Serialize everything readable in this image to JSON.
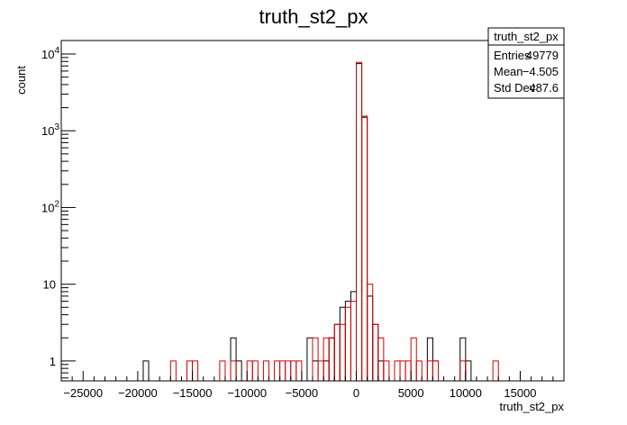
{
  "chart_data": {
    "type": "histogram",
    "title": "truth_st2_px",
    "xlabel": "truth_st2_px",
    "ylabel": "count",
    "xlim": [
      -27000,
      19000
    ],
    "ylim": [
      0.55,
      15000
    ],
    "yscale": "log",
    "grid": false,
    "bin_width": 500,
    "x_ticks": [
      -25000,
      -20000,
      -15000,
      -10000,
      -5000,
      0,
      5000,
      10000,
      15000
    ],
    "x_tick_labels": [
      "−25000",
      "−20000",
      "−15000",
      "−10000",
      "−5000",
      "0",
      "5000",
      "10000",
      "15000"
    ],
    "y_ticks": [
      {
        "value": 1,
        "base": "1",
        "exp": ""
      },
      {
        "value": 10,
        "base": "10",
        "exp": ""
      },
      {
        "value": 100,
        "base": "10",
        "exp": "2"
      },
      {
        "value": 1000,
        "base": "10",
        "exp": "3"
      },
      {
        "value": 10000,
        "base": "10",
        "exp": "4"
      }
    ],
    "series": [
      {
        "color": "#000000",
        "bins": [
          [
            -19500,
            1
          ],
          [
            -11500,
            2
          ],
          [
            -11000,
            1
          ],
          [
            -4500,
            2
          ],
          [
            -4000,
            1
          ],
          [
            -3000,
            1
          ],
          [
            -2500,
            2
          ],
          [
            -2000,
            3
          ],
          [
            -1500,
            5
          ],
          [
            -1000,
            6
          ],
          [
            -500,
            8
          ],
          [
            0,
            7500
          ],
          [
            500,
            1500
          ],
          [
            1000,
            7
          ],
          [
            1500,
            3
          ],
          [
            2000,
            1
          ],
          [
            6500,
            2
          ],
          [
            7000,
            1
          ],
          [
            9500,
            2
          ],
          [
            10000,
            1
          ]
        ]
      },
      {
        "color": "#d40000",
        "bins": [
          [
            -17000,
            1
          ],
          [
            -15500,
            1
          ],
          [
            -15000,
            1
          ],
          [
            -12500,
            1
          ],
          [
            -11500,
            1
          ],
          [
            -10000,
            1
          ],
          [
            -9500,
            1
          ],
          [
            -8500,
            1
          ],
          [
            -7500,
            1
          ],
          [
            -7000,
            1
          ],
          [
            -6500,
            1
          ],
          [
            -6000,
            1
          ],
          [
            -5500,
            1
          ],
          [
            -4000,
            2
          ],
          [
            -3500,
            1
          ],
          [
            -3000,
            2
          ],
          [
            -2500,
            2
          ],
          [
            -2000,
            3
          ],
          [
            -1500,
            3
          ],
          [
            -1000,
            5
          ],
          [
            -500,
            6
          ],
          [
            0,
            7800
          ],
          [
            500,
            1550
          ],
          [
            1000,
            10
          ],
          [
            1500,
            3
          ],
          [
            2000,
            2
          ],
          [
            2500,
            1
          ],
          [
            3500,
            1
          ],
          [
            4000,
            1
          ],
          [
            4500,
            1
          ],
          [
            5000,
            2
          ],
          [
            5500,
            1
          ],
          [
            6500,
            1
          ],
          [
            7000,
            1
          ],
          [
            9500,
            1
          ],
          [
            12500,
            1
          ]
        ]
      }
    ],
    "stats": {
      "box_title": "truth_st2_px",
      "rows": [
        {
          "label": "Entries",
          "value": "49779"
        },
        {
          "label": "Mean",
          "value": "−4.505"
        },
        {
          "label": "Std Dev",
          "value": "487.6"
        }
      ]
    }
  }
}
